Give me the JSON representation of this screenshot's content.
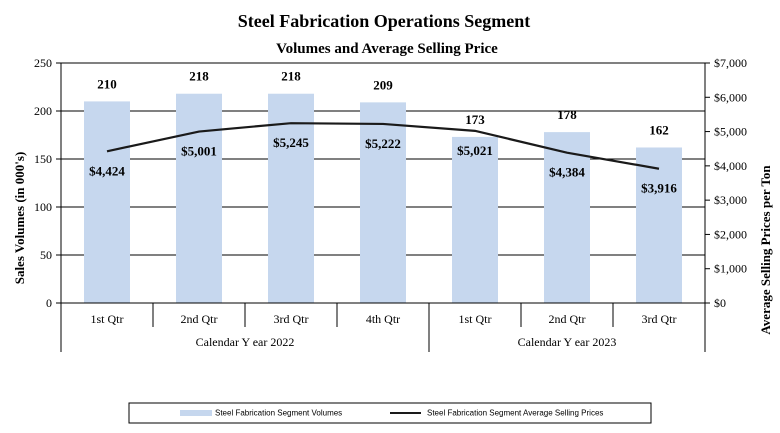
{
  "chart_data": {
    "type": "bar",
    "title": "Steel Fabrication  Operations Segment",
    "subtitle": "Volumes and Average Selling Price",
    "categories": [
      "1st Qtr",
      "2nd Qtr",
      "3rd Qtr",
      "4th Qtr",
      "1st Qtr",
      "2nd Qtr",
      "3rd Qtr"
    ],
    "category_groups": [
      {
        "label": "Calendar Y ear 2022",
        "count": 4
      },
      {
        "label": "Calendar Y ear 2023",
        "count": 3
      }
    ],
    "series": [
      {
        "name": "Steel Fabrication Segment Volumes",
        "type": "bar",
        "axis": "left",
        "color": "#c6d7ee",
        "values": [
          210,
          218,
          218,
          209,
          173,
          178,
          162
        ],
        "labels": [
          "210",
          "218",
          "218",
          "209",
          "173",
          "178",
          "162"
        ]
      },
      {
        "name": "Steel Fabrication Segment Average Selling Prices",
        "type": "line",
        "axis": "right",
        "color": "#1a1a1a",
        "values": [
          4424,
          5001,
          5245,
          5222,
          5021,
          4384,
          3916
        ],
        "labels": [
          "$4,424",
          "$5,001",
          "$5,245",
          "$5,222",
          "$5,021",
          "$4,384",
          "$3,916"
        ]
      }
    ],
    "ylabel": "Sales Volumes (in 000's)",
    "ylim": [
      0,
      250
    ],
    "yticks": [
      0,
      50,
      100,
      150,
      200,
      250
    ],
    "ytick_labels": [
      "0",
      "50",
      "100",
      "150",
      "200",
      "250"
    ],
    "y2label": "Average Selling Prices per Ton",
    "y2lim": [
      0,
      7000
    ],
    "y2ticks": [
      0,
      1000,
      2000,
      3000,
      4000,
      5000,
      6000,
      7000
    ],
    "y2tick_labels": [
      "$0",
      "$1,000",
      "$2,000",
      "$3,000",
      "$4,000",
      "$5,000",
      "$6,000",
      "$7,000"
    ],
    "grid": true,
    "legend_position": "bottom"
  }
}
